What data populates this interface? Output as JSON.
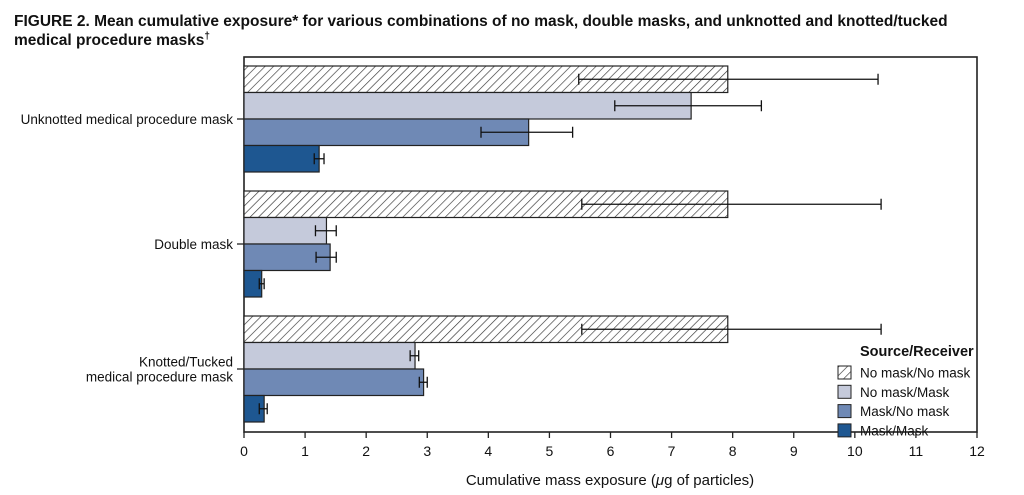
{
  "figure": {
    "title": "FIGURE 2. Mean cumulative exposure* for various combinations of no mask, double masks, and unknotted and knotted/tucked medical procedure masks",
    "title_dagger": "†"
  },
  "chart_data": {
    "type": "bar",
    "orientation": "horizontal",
    "categories": [
      "Unknotted medical procedure mask",
      "Double mask",
      "Knotted/Tucked medical procedure mask"
    ],
    "category_lines": [
      [
        "Unknotted medical procedure mask"
      ],
      [
        "Double mask"
      ],
      [
        "Knotted/Tucked",
        "medical procedure mask"
      ]
    ],
    "series": [
      {
        "name": "No mask/No mask",
        "values": [
          7.92,
          7.92,
          7.92
        ],
        "err_low": [
          5.48,
          5.53,
          5.53
        ],
        "err_high": [
          10.38,
          10.43,
          10.43
        ],
        "fill": "hatch"
      },
      {
        "name": "No mask/Mask",
        "values": [
          7.32,
          1.35,
          2.8
        ],
        "err_low": [
          6.07,
          1.17,
          2.72
        ],
        "err_high": [
          8.47,
          1.51,
          2.86
        ],
        "fill": "#c5cadb"
      },
      {
        "name": "Mask/No mask",
        "values": [
          4.66,
          1.41,
          2.94
        ],
        "err_low": [
          3.88,
          1.18,
          2.87
        ],
        "err_high": [
          5.38,
          1.51,
          3.0
        ],
        "fill": "#6f89b5"
      },
      {
        "name": "Mask/Mask",
        "values": [
          1.23,
          0.29,
          0.33
        ],
        "err_low": [
          1.15,
          0.25,
          0.25
        ],
        "err_high": [
          1.31,
          0.33,
          0.38
        ],
        "fill": "#1e5791"
      }
    ],
    "xlim": [
      0,
      12
    ],
    "xticks": [
      0,
      1,
      2,
      3,
      4,
      5,
      6,
      7,
      8,
      9,
      10,
      11,
      12
    ],
    "xlabel_pre": "Cumulative mass exposure (",
    "xlabel_mu": "μ",
    "xlabel_post": "g of particles)",
    "legend": {
      "title": "Source/Receiver",
      "position": "bottom-right"
    },
    "grid": false
  }
}
